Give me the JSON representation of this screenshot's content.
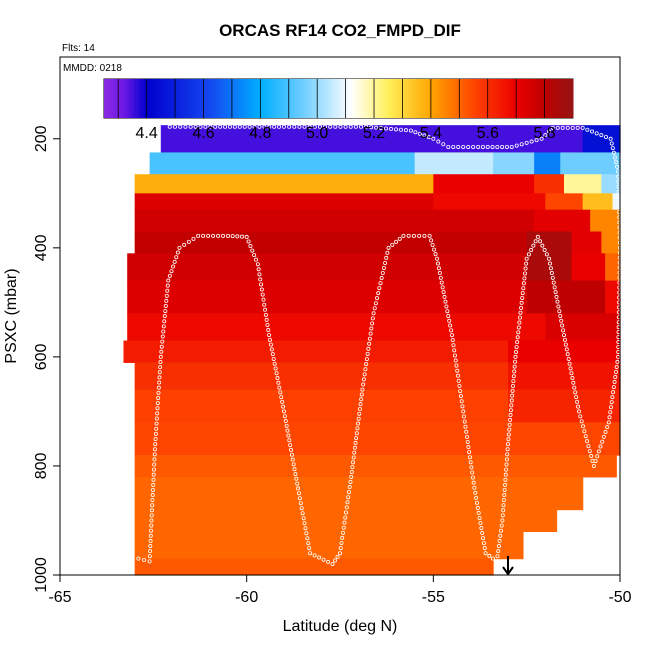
{
  "chart_data": {
    "type": "heatmap",
    "title": "ORCAS RF14 CO2_FMPD_DIF",
    "info": {
      "flights": "Flts: 14",
      "date": "MMDD: 0218"
    },
    "xlabel": "Latitude (deg N)",
    "ylabel": "PSXC (mbar)",
    "xlim": [
      -65,
      -50
    ],
    "ylim": [
      1000,
      50
    ],
    "x_ticks": [
      -65,
      -60,
      -55,
      -50
    ],
    "y_ticks": [
      200,
      400,
      600,
      800,
      1000
    ],
    "colorbar": {
      "range": [
        4.25,
        5.9
      ],
      "ticks": [
        4.4,
        4.6,
        4.8,
        5.0,
        5.2,
        5.4,
        5.6,
        5.8
      ],
      "tick_labels": [
        "4.4",
        "4.6",
        "4.8",
        "5.0",
        "5.2",
        "5.4",
        "5.6",
        "5.8"
      ]
    },
    "pressure_bins": [
      {
        "p0": 175,
        "p1": 225,
        "segments": [
          [
            -62.3,
            -51.0,
            4.35
          ],
          [
            -51.0,
            -50.0,
            4.45
          ]
        ]
      },
      {
        "p0": 225,
        "p1": 265,
        "segments": [
          [
            -62.6,
            -55.5,
            4.9
          ],
          [
            -55.5,
            -53.4,
            5.05
          ],
          [
            -53.4,
            -52.3,
            4.98
          ],
          [
            -52.3,
            -51.6,
            4.72
          ],
          [
            -51.6,
            -50.0,
            4.95
          ]
        ]
      },
      {
        "p0": 265,
        "p1": 300,
        "segments": [
          [
            -63.0,
            -55.0,
            5.38
          ],
          [
            -55.0,
            -52.3,
            5.7
          ],
          [
            -52.3,
            -51.5,
            5.6
          ],
          [
            -51.5,
            -50.5,
            5.2
          ],
          [
            -50.5,
            -50.0,
            5.0
          ]
        ]
      },
      {
        "p0": 300,
        "p1": 330,
        "segments": [
          [
            -63.0,
            -55.0,
            5.73
          ],
          [
            -55.0,
            -52.0,
            5.68
          ],
          [
            -52.0,
            -51.0,
            5.55
          ],
          [
            -51.0,
            -50.2,
            5.35
          ],
          [
            -50.2,
            -50.0,
            5.1
          ]
        ]
      },
      {
        "p0": 330,
        "p1": 370,
        "segments": [
          [
            -63.0,
            -52.3,
            5.76
          ],
          [
            -52.3,
            -50.8,
            5.72
          ],
          [
            -50.8,
            -50.0,
            5.45
          ]
        ]
      },
      {
        "p0": 370,
        "p1": 410,
        "segments": [
          [
            -63.0,
            -52.5,
            5.79
          ],
          [
            -52.5,
            -51.3,
            5.85
          ],
          [
            -51.3,
            -50.5,
            5.72
          ],
          [
            -50.5,
            -50.0,
            5.45
          ]
        ]
      },
      {
        "p0": 410,
        "p1": 460,
        "segments": [
          [
            -63.2,
            -52.5,
            5.76
          ],
          [
            -52.5,
            -51.3,
            5.85
          ],
          [
            -51.3,
            -50.4,
            5.7
          ],
          [
            -50.4,
            -50.0,
            5.5
          ]
        ]
      },
      {
        "p0": 460,
        "p1": 520,
        "segments": [
          [
            -63.2,
            -52.5,
            5.73
          ],
          [
            -52.5,
            -50.4,
            5.8
          ],
          [
            -50.4,
            -50.0,
            5.68
          ]
        ]
      },
      {
        "p0": 520,
        "p1": 570,
        "segments": [
          [
            -63.2,
            -52.0,
            5.68
          ],
          [
            -52.0,
            -50.0,
            5.74
          ]
        ]
      },
      {
        "p0": 570,
        "p1": 610,
        "segments": [
          [
            -63.3,
            -53.0,
            5.64
          ],
          [
            -53.0,
            -50.0,
            5.7
          ]
        ]
      },
      {
        "p0": 610,
        "p1": 660,
        "segments": [
          [
            -63.0,
            -53.0,
            5.6
          ],
          [
            -53.0,
            -50.0,
            5.66
          ]
        ]
      },
      {
        "p0": 660,
        "p1": 720,
        "segments": [
          [
            -63.0,
            -53.0,
            5.56
          ],
          [
            -53.0,
            -50.0,
            5.62
          ]
        ]
      },
      {
        "p0": 720,
        "p1": 780,
        "segments": [
          [
            -63.0,
            -50.0,
            5.55
          ]
        ]
      },
      {
        "p0": 780,
        "p1": 820,
        "segments": [
          [
            -63.0,
            -50.1,
            5.52
          ]
        ]
      },
      {
        "p0": 820,
        "p1": 880,
        "segments": [
          [
            -63.0,
            -51.0,
            5.5
          ]
        ]
      },
      {
        "p0": 880,
        "p1": 920,
        "segments": [
          [
            -63.0,
            -51.7,
            5.5
          ]
        ]
      },
      {
        "p0": 920,
        "p1": 970,
        "segments": [
          [
            -63.0,
            -52.6,
            5.5
          ]
        ]
      },
      {
        "p0": 970,
        "p1": 1000,
        "segments": [
          [
            -63.0,
            -53.4,
            5.52
          ]
        ]
      }
    ],
    "flight_track": [
      [
        -62.9,
        970
      ],
      [
        -62.6,
        975
      ],
      [
        -62.55,
        900
      ],
      [
        -62.45,
        760
      ],
      [
        -62.3,
        600
      ],
      [
        -62.1,
        460
      ],
      [
        -61.8,
        400
      ],
      [
        -61.3,
        378
      ],
      [
        -60.5,
        378
      ],
      [
        -60.0,
        380
      ],
      [
        -59.7,
        430
      ],
      [
        -59.4,
        560
      ],
      [
        -59.0,
        700
      ],
      [
        -58.6,
        850
      ],
      [
        -58.3,
        960
      ],
      [
        -57.7,
        980
      ],
      [
        -57.5,
        960
      ],
      [
        -57.2,
        820
      ],
      [
        -56.9,
        660
      ],
      [
        -56.6,
        520
      ],
      [
        -56.2,
        400
      ],
      [
        -55.8,
        378
      ],
      [
        -55.1,
        378
      ],
      [
        -54.9,
        420
      ],
      [
        -54.5,
        560
      ],
      [
        -54.2,
        700
      ],
      [
        -53.9,
        840
      ],
      [
        -53.6,
        960
      ],
      [
        -53.3,
        975
      ],
      [
        -53.15,
        900
      ],
      [
        -53.0,
        760
      ],
      [
        -52.8,
        600
      ],
      [
        -52.5,
        420
      ],
      [
        -52.2,
        380
      ],
      [
        -51.9,
        420
      ],
      [
        -51.5,
        560
      ],
      [
        -51.1,
        700
      ],
      [
        -50.7,
        800
      ],
      [
        -50.3,
        720
      ],
      [
        -50.05,
        600
      ],
      [
        -50.0,
        400
      ],
      [
        -50.05,
        260
      ],
      [
        -50.25,
        200
      ],
      [
        -51.0,
        180
      ],
      [
        -51.8,
        180
      ],
      [
        -52.1,
        200
      ],
      [
        -52.9,
        215
      ],
      [
        -53.8,
        215
      ],
      [
        -54.6,
        215
      ],
      [
        -55.0,
        200
      ],
      [
        -55.6,
        185
      ],
      [
        -56.8,
        178
      ],
      [
        -59.0,
        178
      ],
      [
        -61.5,
        178
      ],
      [
        -62.2,
        178
      ]
    ],
    "marker": {
      "x": -53.0,
      "label": "arrow"
    }
  }
}
